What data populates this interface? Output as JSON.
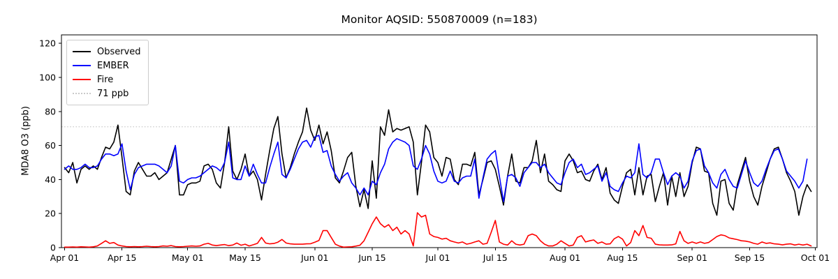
{
  "chart_data": {
    "type": "line",
    "title": "Monitor AQSID: 550870009 (n=183)",
    "xlabel": "",
    "ylabel": "MDA8 O3 (ppb)",
    "ylim": [
      0,
      125
    ],
    "y_ticks": [
      0,
      20,
      40,
      60,
      80,
      100,
      120
    ],
    "x_ticks": [
      {
        "label": "Apr 01",
        "day": 0
      },
      {
        "label": "Apr 15",
        "day": 14
      },
      {
        "label": "May 01",
        "day": 30
      },
      {
        "label": "May 15",
        "day": 44
      },
      {
        "label": "Jun 01",
        "day": 61
      },
      {
        "label": "Jun 15",
        "day": 75
      },
      {
        "label": "Jul 01",
        "day": 91
      },
      {
        "label": "Jul 15",
        "day": 105
      },
      {
        "label": "Aug 01",
        "day": 122
      },
      {
        "label": "Aug 15",
        "day": 136
      },
      {
        "label": "Sep 01",
        "day": 153
      },
      {
        "label": "Sep 15",
        "day": 167
      },
      {
        "label": "Oct 01",
        "day": 183
      }
    ],
    "x_start_label": "Apr 01",
    "x_end_label": "Oct 01",
    "n_points": 183,
    "grid": false,
    "legend_position": "upper-left",
    "threshold": {
      "label": "71 ppb",
      "value": 71,
      "color": "#c9c9c9",
      "style": "dotted"
    },
    "series": [
      {
        "name": "Observed",
        "color": "#000000",
        "values": [
          47,
          44,
          50,
          38,
          46,
          48,
          46,
          48,
          46,
          53,
          59,
          58,
          62,
          72,
          53,
          33,
          31,
          45,
          50,
          46,
          42,
          42,
          44,
          40,
          42,
          44,
          52,
          60,
          31,
          31,
          37,
          38,
          38,
          39,
          48,
          49,
          46,
          38,
          35,
          50,
          71,
          45,
          40,
          46,
          55,
          42,
          45,
          40,
          28,
          43,
          57,
          70,
          77,
          55,
          41,
          47,
          55,
          62,
          68,
          82,
          69,
          63,
          72,
          61,
          68,
          57,
          41,
          38,
          45,
          53,
          56,
          36,
          24,
          34,
          23,
          51,
          29,
          71,
          66,
          81,
          68,
          70,
          69,
          70,
          71,
          62,
          31,
          50,
          72,
          68,
          53,
          50,
          42,
          53,
          52,
          40,
          37,
          49,
          49,
          48,
          56,
          31,
          40,
          50,
          51,
          46,
          36,
          25,
          42,
          55,
          39,
          38,
          47,
          47,
          51,
          63,
          44,
          55,
          39,
          37,
          34,
          33,
          51,
          55,
          51,
          44,
          45,
          40,
          39,
          45,
          49,
          40,
          47,
          32,
          28,
          26,
          36,
          44,
          46,
          31,
          47,
          31,
          42,
          43,
          27,
          36,
          44,
          25,
          42,
          30,
          44,
          30,
          36,
          50,
          59,
          58,
          45,
          44,
          26,
          19,
          39,
          40,
          26,
          22,
          37,
          45,
          53,
          39,
          30,
          25,
          36,
          44,
          52,
          58,
          59,
          52,
          44,
          39,
          33,
          19,
          30,
          37,
          33
        ]
      },
      {
        "name": "EMBER",
        "color": "#0000ff",
        "values": [
          46,
          48,
          46,
          46,
          47,
          49,
          47,
          47,
          48,
          52,
          55,
          55,
          54,
          55,
          61,
          45,
          34,
          43,
          47,
          48,
          49,
          49,
          49,
          48,
          46,
          44,
          48,
          60,
          39,
          38,
          40,
          41,
          41,
          42,
          44,
          46,
          48,
          47,
          45,
          50,
          62,
          41,
          40,
          40,
          48,
          42,
          49,
          43,
          38,
          38,
          47,
          55,
          62,
          43,
          41,
          46,
          52,
          58,
          62,
          63,
          59,
          65,
          66,
          56,
          57,
          48,
          43,
          39,
          42,
          44,
          38,
          35,
          31,
          35,
          31,
          39,
          37,
          44,
          49,
          58,
          62,
          64,
          63,
          62,
          60,
          48,
          46,
          52,
          60,
          55,
          45,
          39,
          38,
          39,
          45,
          39,
          38,
          41,
          42,
          42,
          52,
          29,
          41,
          52,
          55,
          57,
          42,
          27,
          42,
          43,
          41,
          36,
          44,
          47,
          50,
          50,
          47,
          49,
          44,
          41,
          38,
          37,
          44,
          50,
          52,
          47,
          49,
          43,
          44,
          46,
          48,
          39,
          44,
          36,
          34,
          33,
          38,
          42,
          41,
          44,
          61,
          43,
          41,
          44,
          52,
          52,
          44,
          37,
          42,
          44,
          42,
          35,
          39,
          51,
          57,
          58,
          48,
          44,
          38,
          35,
          43,
          46,
          40,
          36,
          35,
          43,
          51,
          44,
          38,
          36,
          39,
          46,
          52,
          57,
          58,
          52,
          45,
          42,
          39,
          35,
          39,
          52,
          null
        ]
      },
      {
        "name": "Fire",
        "color": "#ff0000",
        "values": [
          0.3,
          0.3,
          0.4,
          0.3,
          0.5,
          0.4,
          0.3,
          0.5,
          1,
          2.5,
          4,
          2.5,
          3,
          1.5,
          1,
          0.6,
          0.5,
          0.6,
          0.5,
          0.6,
          0.8,
          0.6,
          0.5,
          0.6,
          1,
          0.8,
          1.2,
          0.6,
          0.5,
          0.6,
          0.8,
          1,
          0.8,
          1,
          2,
          2.5,
          1.5,
          1.2,
          1.5,
          1.8,
          1.2,
          1.5,
          2.7,
          1.4,
          2,
          1,
          1.7,
          2.5,
          6,
          2.7,
          2.2,
          2.4,
          3.2,
          4.8,
          2.7,
          2.2,
          2,
          2,
          2,
          2.2,
          2.3,
          3.2,
          4.2,
          10,
          10,
          6,
          2,
          0.9,
          0.3,
          0.4,
          0.5,
          0.9,
          1.4,
          4,
          9,
          14,
          18,
          14,
          12,
          13.5,
          10,
          12,
          8,
          10,
          8,
          1,
          20.5,
          18,
          19,
          8,
          6.5,
          6,
          5,
          5.5,
          4,
          3.3,
          2.7,
          3.3,
          2,
          2.5,
          3.3,
          4,
          2,
          2.5,
          9,
          16,
          3.3,
          2,
          1.5,
          4,
          2,
          1.5,
          2,
          7,
          8,
          7,
          4,
          2,
          1,
          1,
          2,
          4,
          2.5,
          1,
          1.5,
          6,
          7,
          3.3,
          4,
          4.5,
          2.5,
          3.3,
          2,
          2.2,
          5.2,
          6.5,
          5,
          1,
          3,
          10,
          7,
          13,
          6,
          5.5,
          2,
          1.6,
          1.5,
          1.5,
          1.6,
          2.2,
          9.5,
          4,
          2.5,
          3.3,
          2.5,
          3.3,
          2.5,
          3,
          4.7,
          6.5,
          7.5,
          7,
          5.7,
          5.2,
          4.7,
          4,
          3.8,
          3.3,
          2.5,
          2,
          3.3,
          2.5,
          2.8,
          2.2,
          2,
          1.6,
          2,
          2.2,
          1.5,
          2,
          1.5,
          2,
          1
        ]
      }
    ],
    "legend_entries": [
      "Observed",
      "EMBER",
      "Fire",
      "71 ppb"
    ]
  }
}
